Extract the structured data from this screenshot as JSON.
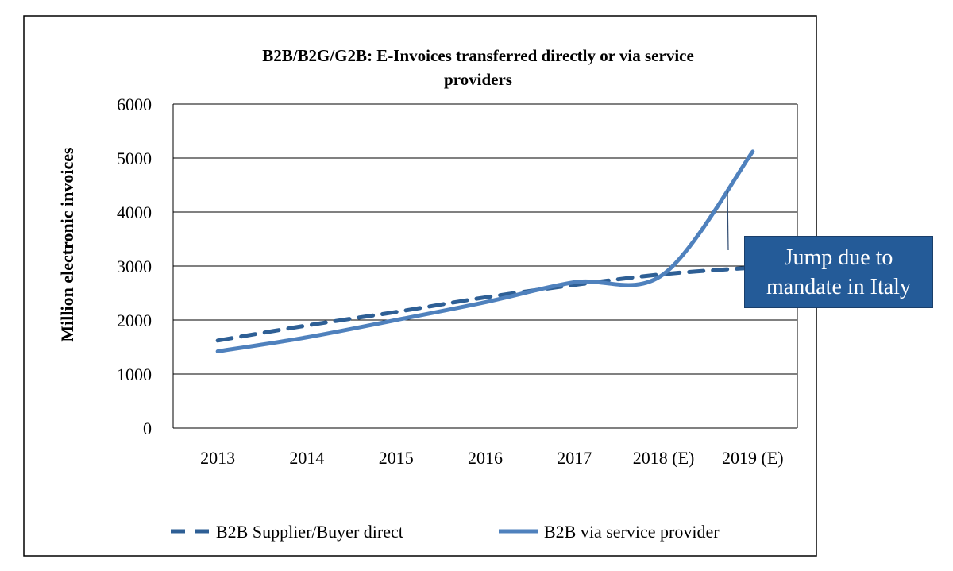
{
  "chart_data": {
    "type": "line",
    "title": "B2B/B2G/G2B: E-Invoices transferred  directly  or via service providers",
    "title_line1": "B2B/B2G/G2B: E-Invoices transferred  directly  or via service",
    "title_line2": "providers",
    "xlabel": "",
    "ylabel": "Million  electronic invoices",
    "ylim": [
      0,
      6000
    ],
    "yticks": [
      "0",
      "1000",
      "2000",
      "3000",
      "4000",
      "5000",
      "6000"
    ],
    "categories": [
      "2013",
      "2014",
      "2015",
      "2016",
      "2017",
      "2018 (E)",
      "2019 (E)"
    ],
    "grid": true,
    "legend_position": "bottom",
    "series": [
      {
        "name": "B2B Supplier/Buyer direct",
        "style": "dashed",
        "color": "#2e5f95",
        "values": [
          1620,
          1900,
          2150,
          2420,
          2650,
          2850,
          2970
        ]
      },
      {
        "name": "B2B via service provider",
        "style": "solid",
        "color": "#4f81bd",
        "values": [
          1420,
          1680,
          2000,
          2330,
          2700,
          2850,
          5120
        ]
      }
    ],
    "annotation": {
      "line1": "Jump due to",
      "line2": "mandate in Italy",
      "color": "#245b98"
    }
  }
}
